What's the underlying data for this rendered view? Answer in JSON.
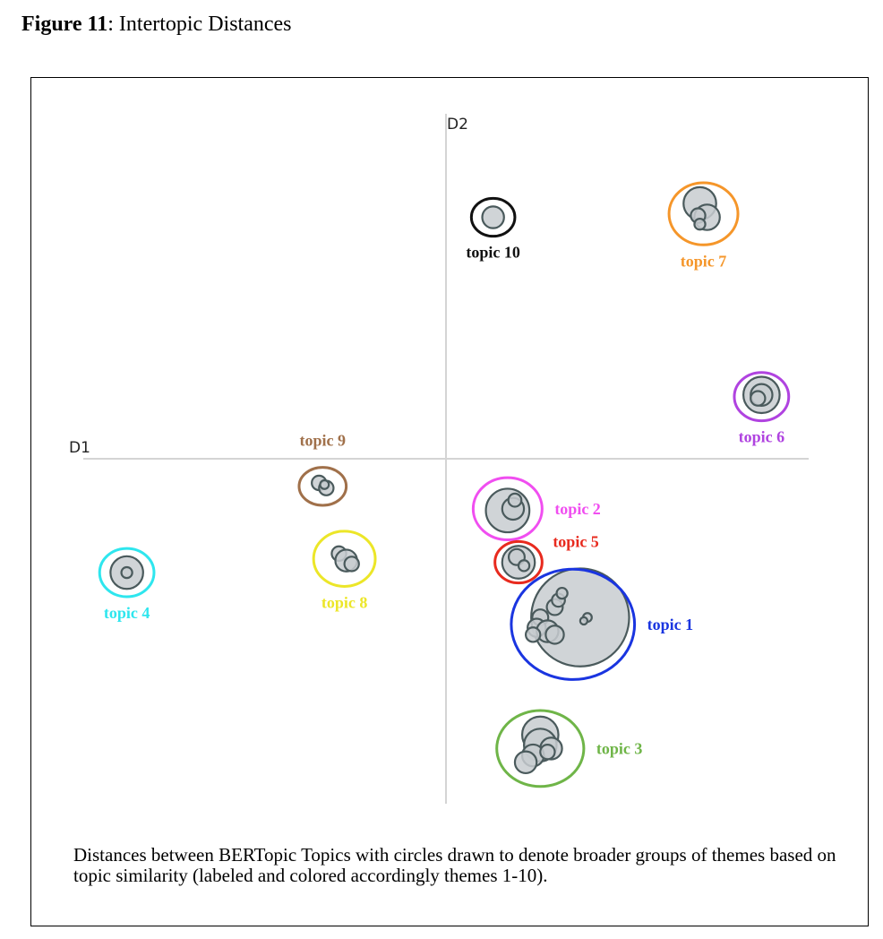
{
  "figure": {
    "number_label": "Figure 11",
    "title": ": Intertopic Distances"
  },
  "caption": "Distances between BERTopic Topics with circles drawn to denote broader groups of themes based on topic similarity (labeled and colored accordingly themes 1-10).",
  "chart_data": {
    "type": "scatter",
    "title": "",
    "xlabel": "D1",
    "ylabel": "D2",
    "grid": false,
    "xlim": [
      -10,
      10
    ],
    "ylim": [
      -10,
      10
    ],
    "bubble_fill": "#c8cdd0",
    "bubble_stroke": "#4a5a5c",
    "groups": [
      {
        "label": "topic 1",
        "color": "#1a35e0",
        "x": 3.5,
        "y": -4.8,
        "rx": 1.7,
        "ry": 1.6,
        "points": [
          [
            3.7,
            -4.6,
            1.35
          ],
          [
            3.0,
            -4.3,
            0.22
          ],
          [
            3.1,
            -4.1,
            0.18
          ],
          [
            3.2,
            -3.9,
            0.15
          ],
          [
            2.6,
            -4.6,
            0.22
          ],
          [
            2.5,
            -4.9,
            0.25
          ],
          [
            2.8,
            -5.0,
            0.3
          ],
          [
            3.0,
            -5.1,
            0.25
          ],
          [
            2.4,
            -5.1,
            0.2
          ],
          [
            3.9,
            -4.6,
            0.12
          ],
          [
            3.8,
            -4.7,
            0.1
          ]
        ]
      },
      {
        "label": "topic 2",
        "color": "#f04ef0",
        "x": 1.7,
        "y": -1.45,
        "rx": 0.95,
        "ry": 0.9,
        "points": [
          [
            1.7,
            -1.5,
            0.6
          ],
          [
            1.85,
            -1.45,
            0.3
          ],
          [
            1.9,
            -1.2,
            0.18
          ]
        ]
      },
      {
        "label": "topic 3",
        "color": "#6fb548",
        "x": 2.6,
        "y": -8.4,
        "rx": 1.2,
        "ry": 1.1,
        "points": [
          [
            2.6,
            -8.0,
            0.5
          ],
          [
            2.6,
            -8.3,
            0.45
          ],
          [
            2.9,
            -8.4,
            0.3
          ],
          [
            2.4,
            -8.6,
            0.3
          ],
          [
            2.2,
            -8.8,
            0.3
          ],
          [
            2.8,
            -8.5,
            0.2
          ]
        ]
      },
      {
        "label": "topic 4",
        "color": "#2ee6ee",
        "x": -8.8,
        "y": -3.3,
        "rx": 0.75,
        "ry": 0.7,
        "points": [
          [
            -8.8,
            -3.3,
            0.45
          ],
          [
            -8.8,
            -3.3,
            0.15
          ]
        ]
      },
      {
        "label": "topic 5",
        "color": "#e82a1e",
        "x": 2.0,
        "y": -3.0,
        "rx": 0.65,
        "ry": 0.6,
        "points": [
          [
            2.0,
            -3.0,
            0.45
          ],
          [
            1.95,
            -2.85,
            0.22
          ],
          [
            2.15,
            -3.1,
            0.15
          ]
        ]
      },
      {
        "label": "topic 6",
        "color": "#b043e0",
        "x": 8.7,
        "y": 1.8,
        "rx": 0.75,
        "ry": 0.7,
        "points": [
          [
            8.7,
            1.85,
            0.5
          ],
          [
            8.7,
            1.85,
            0.3
          ],
          [
            8.6,
            1.75,
            0.2
          ]
        ]
      },
      {
        "label": "topic 7",
        "color": "#f5962a",
        "x": 7.1,
        "y": 7.1,
        "rx": 0.95,
        "ry": 0.9,
        "points": [
          [
            7.0,
            7.4,
            0.45
          ],
          [
            7.2,
            7.0,
            0.35
          ],
          [
            6.95,
            7.05,
            0.2
          ],
          [
            7.0,
            6.8,
            0.15
          ]
        ]
      },
      {
        "label": "topic 8",
        "color": "#ece628",
        "x": -2.8,
        "y": -2.9,
        "rx": 0.85,
        "ry": 0.8,
        "points": [
          [
            -2.95,
            -2.75,
            0.2
          ],
          [
            -2.75,
            -2.95,
            0.3
          ],
          [
            -2.6,
            -3.05,
            0.2
          ]
        ]
      },
      {
        "label": "topic 9",
        "color": "#a0704a",
        "x": -3.4,
        "y": -0.8,
        "rx": 0.65,
        "ry": 0.55,
        "points": [
          [
            -3.5,
            -0.7,
            0.2
          ],
          [
            -3.3,
            -0.85,
            0.2
          ],
          [
            -3.35,
            -0.75,
            0.12
          ]
        ]
      },
      {
        "label": "topic 10",
        "color": "#111111",
        "x": 1.3,
        "y": 7.0,
        "rx": 0.6,
        "ry": 0.55,
        "points": [
          [
            1.3,
            7.0,
            0.3
          ]
        ]
      }
    ]
  }
}
